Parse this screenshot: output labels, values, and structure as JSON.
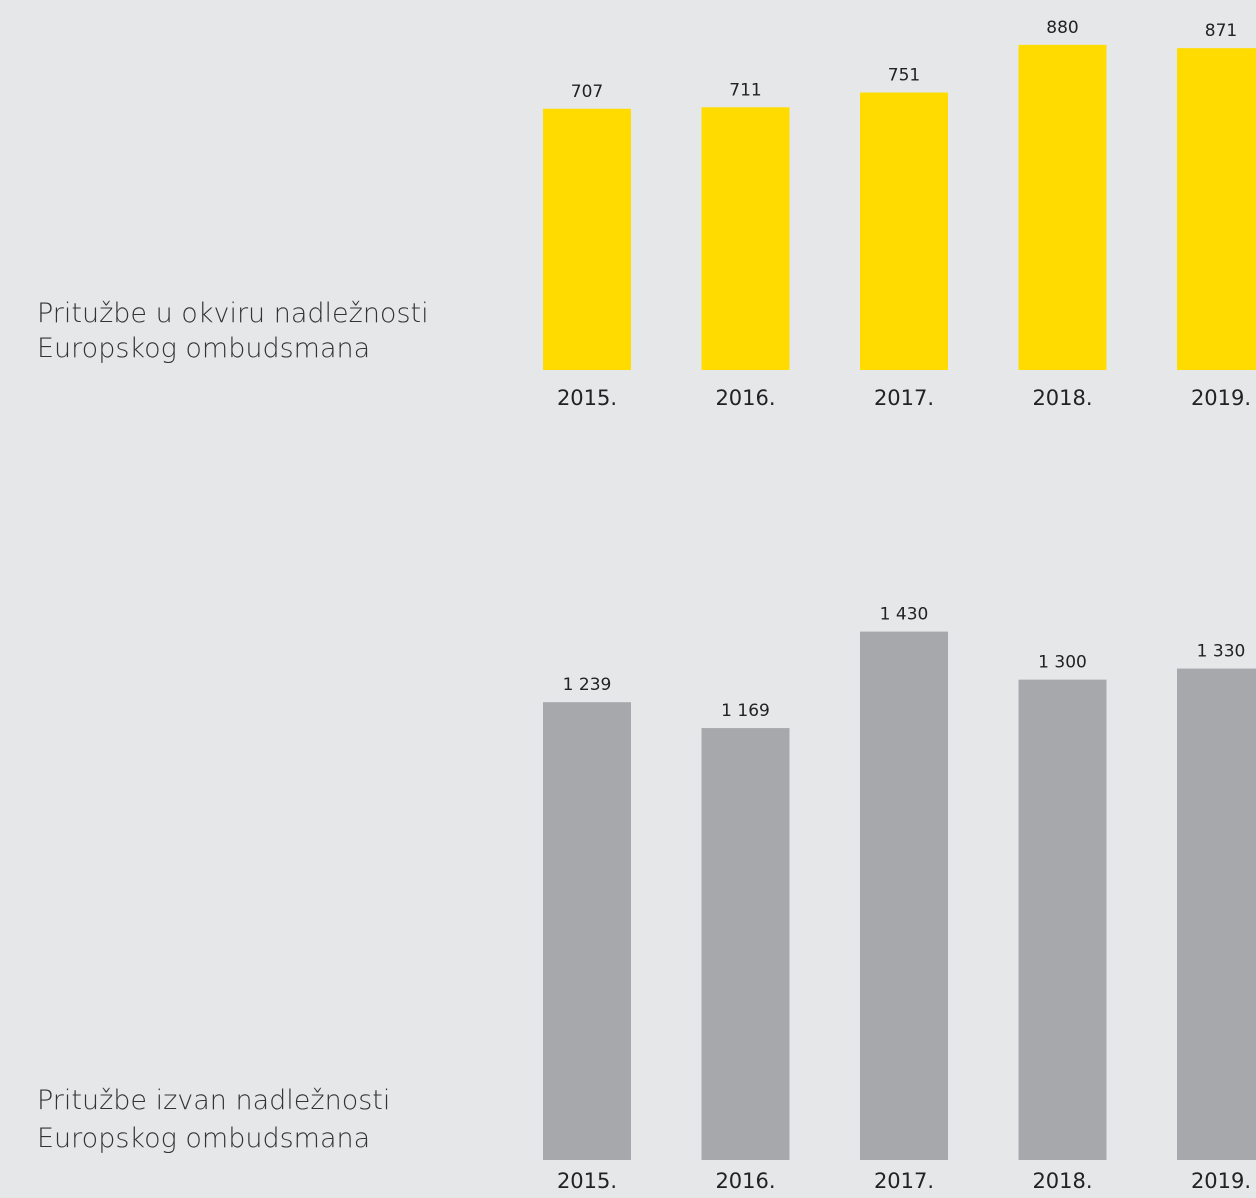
{
  "chart_data": [
    {
      "type": "bar",
      "title": [
        "Pritužbe u okviru nadležnosti",
        "Europskog ombudsmana"
      ],
      "categories": [
        "2015.",
        "2016.",
        "2017.",
        "2018.",
        "2019."
      ],
      "values": [
        707,
        711,
        751,
        880,
        871
      ],
      "color": "#ffdb00",
      "ylim": [
        0,
        1000
      ]
    },
    {
      "type": "bar",
      "title": [
        "Pritužbe izvan nadležnosti",
        "Europskog ombudsmana"
      ],
      "categories": [
        "2015.",
        "2016.",
        "2017.",
        "2018.",
        "2019."
      ],
      "values": [
        1239,
        1169,
        1430,
        1300,
        1330
      ],
      "value_labels": [
        "1 239",
        "1 169",
        "1 430",
        "1 300",
        "1 330"
      ],
      "color": "#a7a8ab",
      "ylim": [
        0,
        1500
      ]
    }
  ]
}
